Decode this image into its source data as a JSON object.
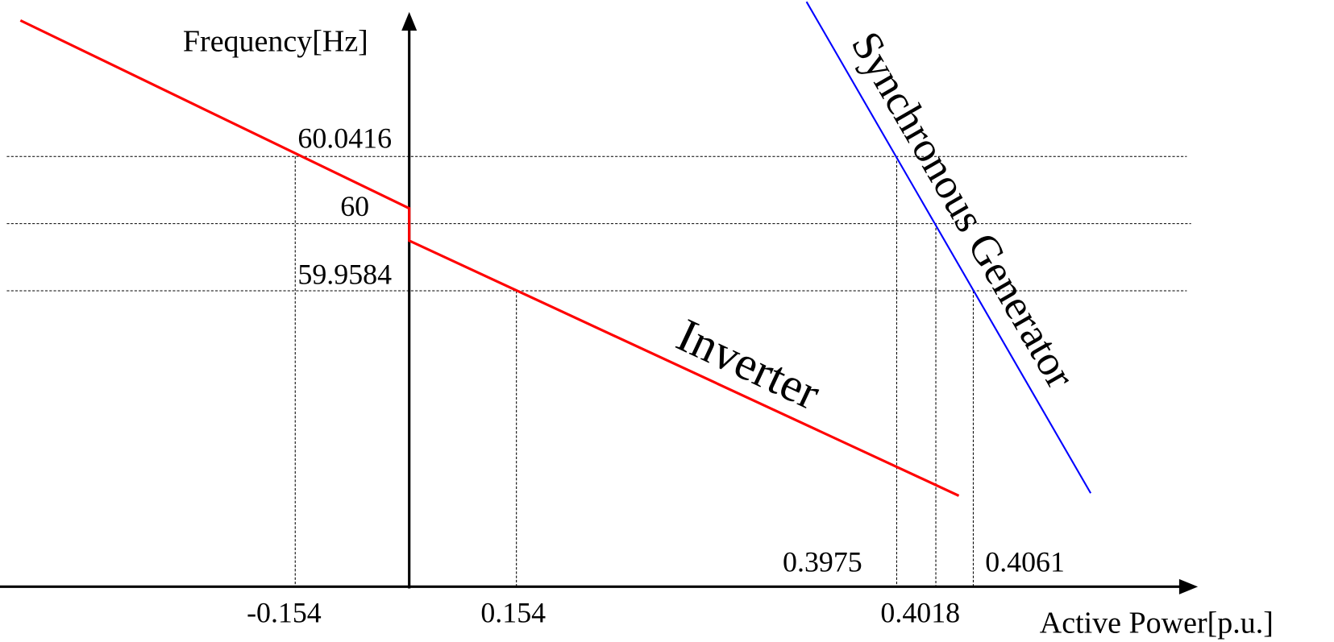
{
  "axes": {
    "y_label": "Frequency[Hz]",
    "x_label": "Active Power[p.u.]"
  },
  "frequency_labels": [
    "60.0416",
    "60",
    "59.9584"
  ],
  "power_labels": [
    "-0.154",
    "0.154",
    "0.3975",
    "0.4018",
    "0.4061"
  ],
  "curves": [
    "Inverter",
    "Synchronous Generator"
  ]
}
